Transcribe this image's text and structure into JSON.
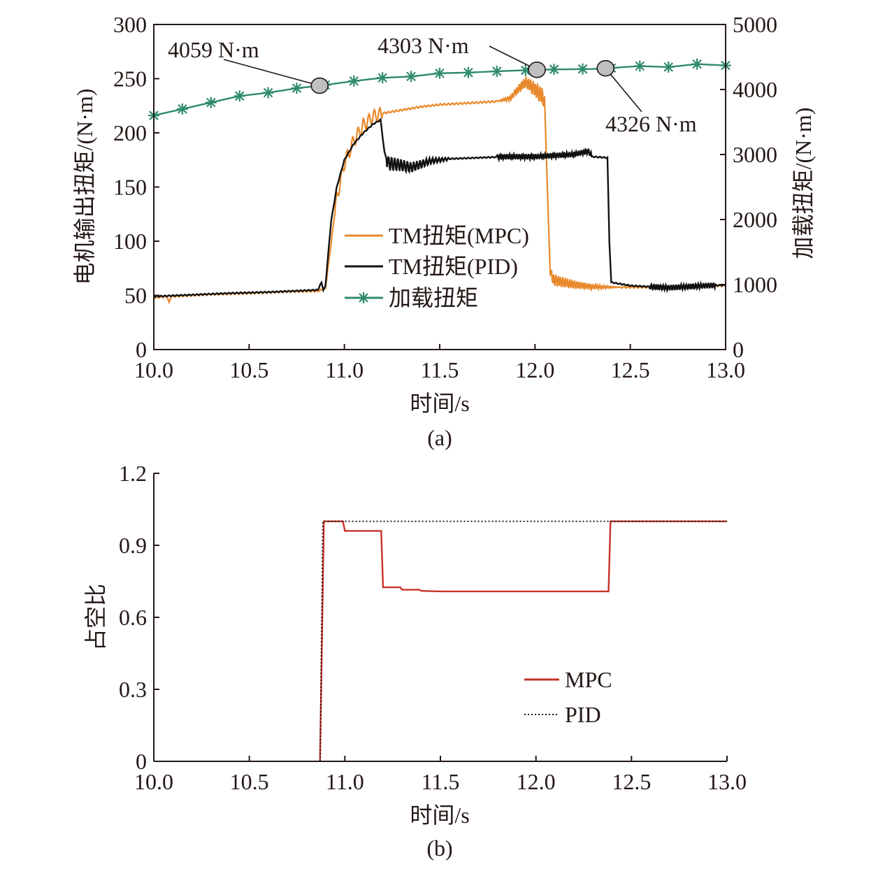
{
  "chart_data": [
    {
      "id": "a",
      "type": "line",
      "caption": "(a)",
      "xlabel": "时间/s",
      "ylabel_left": "电机输出扭矩/(N·m)",
      "ylabel_right": "加载扭矩/(N·m)",
      "xlim": [
        10.0,
        13.0
      ],
      "ylim_left": [
        0,
        300
      ],
      "ylim_right": [
        0,
        5000
      ],
      "xticks": [
        "10.0",
        "10.5",
        "11.0",
        "11.5",
        "12.0",
        "12.5",
        "13.0"
      ],
      "yticks_left": [
        "0",
        "50",
        "100",
        "150",
        "200",
        "250",
        "300"
      ],
      "yticks_right": [
        "0",
        "1000",
        "2000",
        "3000",
        "4000",
        "5000"
      ],
      "grid": false,
      "legend_position": "center",
      "series": [
        {
          "name": "TM扭矩(MPC)",
          "axis": "left",
          "color": "#e8892b",
          "points": [
            [
              10.0,
              48
            ],
            [
              10.07,
              49
            ],
            [
              10.08,
              43
            ],
            [
              10.09,
              49
            ],
            [
              10.3,
              51
            ],
            [
              10.5,
              52
            ],
            [
              10.7,
              53.5
            ],
            [
              10.86,
              54
            ],
            [
              10.9,
              56
            ],
            [
              10.93,
              98
            ],
            [
              10.96,
              140
            ],
            [
              11.0,
              172
            ],
            [
              11.05,
              193
            ],
            [
              11.1,
              207
            ],
            [
              11.15,
              215
            ],
            [
              11.2,
              218
            ],
            [
              11.3,
              221
            ],
            [
              11.4,
              224
            ],
            [
              11.5,
              226
            ],
            [
              11.6,
              227
            ],
            [
              11.7,
              228
            ],
            [
              11.8,
              229
            ],
            [
              11.87,
              232
            ],
            [
              11.9,
              238
            ],
            [
              11.95,
              247
            ],
            [
              12.0,
              240
            ],
            [
              12.05,
              232
            ],
            [
              12.07,
              120
            ],
            [
              12.08,
              70
            ],
            [
              12.1,
              64
            ],
            [
              12.2,
              60
            ],
            [
              12.3,
              58
            ],
            [
              12.4,
              57.5
            ],
            [
              12.5,
              57.5
            ],
            [
              12.6,
              57.5
            ],
            [
              12.7,
              58
            ],
            [
              12.8,
              58.5
            ],
            [
              12.9,
              59
            ],
            [
              13.0,
              59
            ]
          ]
        },
        {
          "name": "TM扭矩(PID)",
          "axis": "left",
          "color": "#111111",
          "points": [
            [
              10.0,
              49
            ],
            [
              10.2,
              50.5
            ],
            [
              10.4,
              52
            ],
            [
              10.6,
              53
            ],
            [
              10.86,
              55
            ],
            [
              10.88,
              62
            ],
            [
              10.89,
              55
            ],
            [
              10.9,
              58
            ],
            [
              10.93,
              118
            ],
            [
              10.96,
              150
            ],
            [
              11.0,
              175
            ],
            [
              11.05,
              190
            ],
            [
              11.1,
              200
            ],
            [
              11.15,
              208
            ],
            [
              11.19,
              212
            ],
            [
              11.21,
              182
            ],
            [
              11.23,
              172
            ],
            [
              11.3,
              170
            ],
            [
              11.35,
              168
            ],
            [
              11.45,
              174
            ],
            [
              11.55,
              176
            ],
            [
              11.7,
              177
            ],
            [
              11.85,
              178
            ],
            [
              12.0,
              178
            ],
            [
              12.1,
              179
            ],
            [
              12.2,
              180
            ],
            [
              12.28,
              183
            ],
            [
              12.3,
              178
            ],
            [
              12.38,
              177
            ],
            [
              12.39,
              100
            ],
            [
              12.4,
              62
            ],
            [
              12.5,
              59
            ],
            [
              12.6,
              58
            ],
            [
              12.7,
              57
            ],
            [
              12.8,
              58
            ],
            [
              12.9,
              59
            ],
            [
              13.0,
              59.5
            ]
          ]
        },
        {
          "name": "加载扭矩",
          "axis": "right",
          "color": "#2f8a6e",
          "points": [
            [
              10.0,
              3600
            ],
            [
              10.15,
              3700
            ],
            [
              10.3,
              3800
            ],
            [
              10.45,
              3900
            ],
            [
              10.6,
              3950
            ],
            [
              10.75,
              4020
            ],
            [
              10.87,
              4059
            ],
            [
              11.05,
              4130
            ],
            [
              11.2,
              4180
            ],
            [
              11.35,
              4200
            ],
            [
              11.5,
              4250
            ],
            [
              11.65,
              4260
            ],
            [
              11.8,
              4280
            ],
            [
              12.01,
              4303
            ],
            [
              12.15,
              4310
            ],
            [
              12.3,
              4315
            ],
            [
              12.37,
              4326
            ],
            [
              12.55,
              4360
            ],
            [
              12.7,
              4345
            ],
            [
              12.85,
              4390
            ],
            [
              13.0,
              4370
            ]
          ],
          "markers": [
            [
              10.0,
              3600
            ],
            [
              10.15,
              3700
            ],
            [
              10.3,
              3800
            ],
            [
              10.45,
              3900
            ],
            [
              10.6,
              3950
            ],
            [
              10.75,
              4020
            ],
            [
              10.9,
              4070
            ],
            [
              11.05,
              4130
            ],
            [
              11.2,
              4180
            ],
            [
              11.35,
              4200
            ],
            [
              11.5,
              4250
            ],
            [
              11.65,
              4260
            ],
            [
              11.8,
              4280
            ],
            [
              11.95,
              4295
            ],
            [
              12.1,
              4310
            ],
            [
              12.25,
              4315
            ],
            [
              12.4,
              4330
            ],
            [
              12.55,
              4360
            ],
            [
              12.7,
              4345
            ],
            [
              12.85,
              4390
            ],
            [
              13.0,
              4370
            ]
          ]
        }
      ],
      "annotations": [
        {
          "text": "4059 N·m",
          "x": 10.87,
          "y": 4059
        },
        {
          "text": "4303 N·m",
          "x": 12.01,
          "y": 4303
        },
        {
          "text": "4326 N·m",
          "x": 12.37,
          "y": 4326
        }
      ]
    },
    {
      "id": "b",
      "type": "line",
      "caption": "(b)",
      "xlabel": "时间/s",
      "ylabel": "占空比",
      "xlim": [
        10.0,
        13.0
      ],
      "ylim": [
        0,
        1.2
      ],
      "xticks": [
        "10.0",
        "10.5",
        "11.0",
        "11.5",
        "12.0",
        "12.5",
        "13.0"
      ],
      "yticks": [
        "0",
        "0.3",
        "0.6",
        "0.9",
        "1.2"
      ],
      "grid": false,
      "legend_position": "lower-right",
      "series": [
        {
          "name": "MPC",
          "color": "#c8322a",
          "style": "solid",
          "points": [
            [
              10.87,
              0
            ],
            [
              10.89,
              1.0
            ],
            [
              10.99,
              1.0
            ],
            [
              11.0,
              0.96
            ],
            [
              11.19,
              0.96
            ],
            [
              11.2,
              0.725
            ],
            [
              11.29,
              0.725
            ],
            [
              11.3,
              0.715
            ],
            [
              11.39,
              0.715
            ],
            [
              11.4,
              0.71
            ],
            [
              11.5,
              0.708
            ],
            [
              12.38,
              0.708
            ],
            [
              12.39,
              1.0
            ],
            [
              13.0,
              1.0
            ]
          ]
        },
        {
          "name": "PID",
          "color": "#111111",
          "style": "dotted",
          "points": [
            [
              10.87,
              0
            ],
            [
              10.885,
              1.0
            ],
            [
              13.0,
              1.0
            ]
          ]
        }
      ]
    }
  ]
}
